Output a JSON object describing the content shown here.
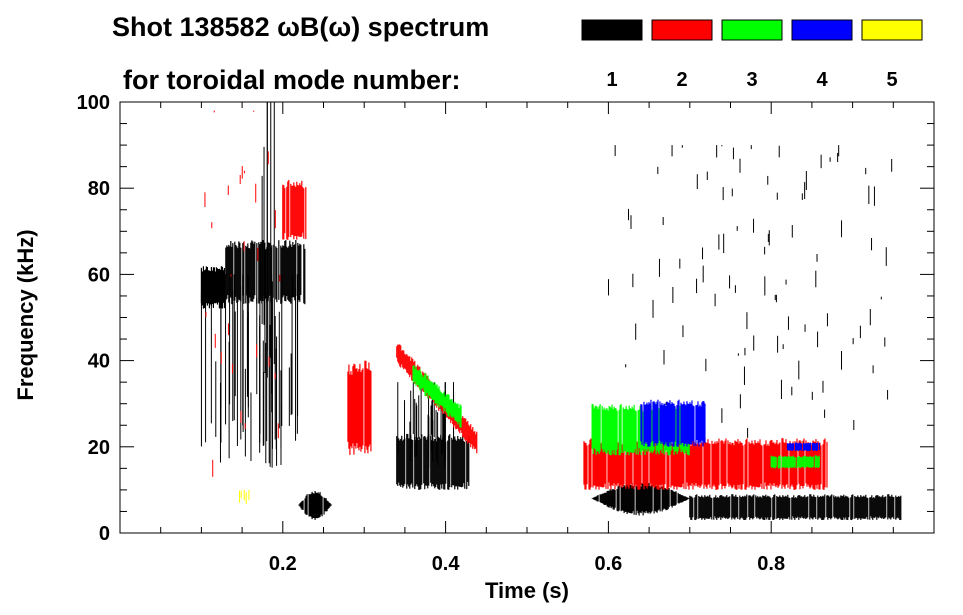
{
  "title_line1": "Shot 138582 ωB(ω) spectrum",
  "title_line2": "for toroidal mode number:",
  "chart_data": {
    "type": "scatter",
    "subtype": "spectrogram",
    "title": "Shot 138582 ωB(ω) spectrum for toroidal mode number:",
    "xlabel": "Time (s)",
    "ylabel": "Frequency (kHz)",
    "xlim": [
      0.0,
      1.0
    ],
    "ylim": [
      0,
      100
    ],
    "xticks": [
      0.2,
      0.4,
      0.6,
      0.8
    ],
    "xtick_labels": [
      "0.2",
      "0.4",
      "0.6",
      "0.8"
    ],
    "yticks": [
      0,
      20,
      40,
      60,
      80,
      100
    ],
    "ytick_labels": [
      "0",
      "20",
      "40",
      "60",
      "80",
      "100"
    ],
    "legend": [
      {
        "n": "1",
        "color": "#000000"
      },
      {
        "n": "2",
        "color": "#ff0000"
      },
      {
        "n": "3",
        "color": "#00ff00"
      },
      {
        "n": "4",
        "color": "#0000ff"
      },
      {
        "n": "5",
        "color": "#ffff00"
      }
    ],
    "series": [
      {
        "name": "n=1",
        "color": "#000000",
        "features": [
          {
            "kind": "band",
            "t": [
              0.1,
              0.13
            ],
            "f": [
              52,
              62
            ]
          },
          {
            "kind": "band",
            "t": [
              0.13,
              0.23
            ],
            "f": [
              53,
              68
            ]
          },
          {
            "kind": "streaks",
            "t": [
              0.1,
              0.22
            ],
            "f": [
              15,
              60
            ]
          },
          {
            "kind": "streaks",
            "t": [
              0.17,
              0.19
            ],
            "f": [
              20,
              100
            ]
          },
          {
            "kind": "blob",
            "t": [
              0.22,
              0.26
            ],
            "f": [
              3,
              10
            ]
          },
          {
            "kind": "band",
            "t": [
              0.34,
              0.43
            ],
            "f": [
              10,
              23
            ]
          },
          {
            "kind": "streaks",
            "t": [
              0.34,
              0.41
            ],
            "f": [
              15,
              35
            ]
          },
          {
            "kind": "blob",
            "t": [
              0.58,
              0.7
            ],
            "f": [
              4,
              12
            ]
          },
          {
            "kind": "band",
            "t": [
              0.7,
              0.96
            ],
            "f": [
              3,
              9
            ]
          },
          {
            "kind": "sparse",
            "t": [
              0.6,
              0.95
            ],
            "f": [
              20,
              90
            ]
          }
        ]
      },
      {
        "name": "n=2",
        "color": "#ff0000",
        "features": [
          {
            "kind": "band",
            "t": [
              0.2,
              0.23
            ],
            "f": [
              68,
              82
            ]
          },
          {
            "kind": "band",
            "t": [
              0.28,
              0.31
            ],
            "f": [
              18,
              40
            ]
          },
          {
            "kind": "curve",
            "t": [
              0.34,
              0.44
            ],
            "f": [
              42,
              21
            ]
          },
          {
            "kind": "band",
            "t": [
              0.57,
              0.87
            ],
            "f": [
              10,
              22
            ]
          },
          {
            "kind": "sparse",
            "t": [
              0.1,
              0.2
            ],
            "f": [
              10,
              98
            ]
          }
        ]
      },
      {
        "name": "n=3",
        "color": "#00ff00",
        "features": [
          {
            "kind": "curve",
            "t": [
              0.36,
              0.42
            ],
            "f": [
              37,
              27
            ]
          },
          {
            "kind": "band",
            "t": [
              0.58,
              0.7
            ],
            "f": [
              18,
              30
            ]
          },
          {
            "kind": "band",
            "t": [
              0.8,
              0.86
            ],
            "f": [
              15,
              18
            ]
          }
        ]
      },
      {
        "name": "n=4",
        "color": "#0000ff",
        "features": [
          {
            "kind": "band",
            "t": [
              0.64,
              0.72
            ],
            "f": [
              20,
              31
            ]
          },
          {
            "kind": "band",
            "t": [
              0.82,
              0.86
            ],
            "f": [
              19,
              21
            ]
          }
        ]
      },
      {
        "name": "n=5",
        "color": "#ffff00",
        "features": [
          {
            "kind": "sparse",
            "t": [
              0.14,
              0.16
            ],
            "f": [
              6,
              10
            ]
          }
        ]
      }
    ]
  }
}
